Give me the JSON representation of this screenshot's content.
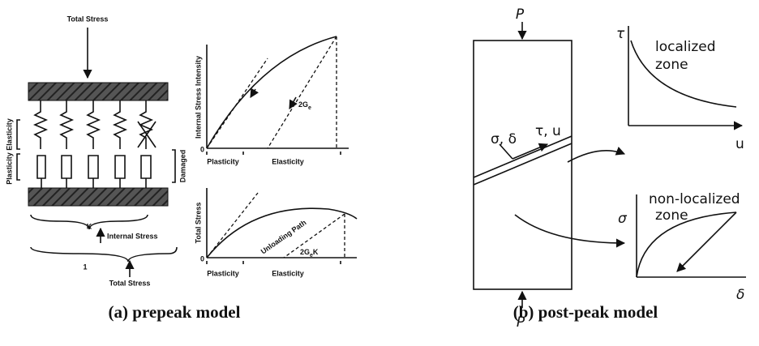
{
  "panel_a": {
    "model_labels": {
      "total_stress_top": "Total Stress",
      "elasticity": "Elasticity",
      "plasticity": "Plasticity",
      "damaged": "Damaged",
      "k": "K",
      "internal_stress": "Internal Stress",
      "one": "1",
      "total_stress_bottom": "Total Stress"
    },
    "top_graph": {
      "y_label": "Internal Stress Intensity",
      "origin": "0",
      "slope": {
        "main": "2G",
        "sub": "e"
      },
      "plasticity": "Plasticity",
      "elasticity": "Elasticity"
    },
    "bottom_graph": {
      "y_label": "Total Stress",
      "origin": "0",
      "path": "Unloading Path",
      "slope": {
        "main": "2G",
        "sub": "e",
        "tail": "K"
      },
      "plasticity": "Plasticity",
      "elasticity": "Elasticity"
    },
    "caption": "(a)  prepeak  model"
  },
  "panel_b": {
    "load_top": "P",
    "load_bottom": "P",
    "normal_axis": "σ, δ",
    "shear_axis": "τ, u",
    "top_graph": {
      "y_label": "τ",
      "zone_line1": "localized",
      "zone_line2": "zone",
      "x_label": "u"
    },
    "bottom_graph": {
      "y_label": "σ",
      "zone_line1": "non-localized",
      "zone_line2": "zone",
      "x_label": "δ"
    },
    "caption": "(b)  post-peak  model"
  }
}
